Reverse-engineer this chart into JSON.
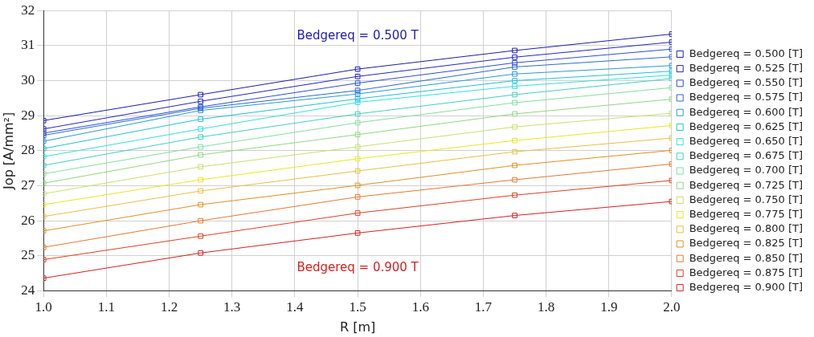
{
  "chart_data": {
    "type": "line",
    "xlabel": "R [m]",
    "ylabel": "Jop [A/mm²]",
    "x": [
      1.0,
      1.25,
      1.5,
      1.75,
      2.0
    ],
    "xlim": [
      1.0,
      2.0
    ],
    "xticks": [
      {
        "value": 1.0,
        "label": "1.0"
      },
      1.1,
      1.2,
      1.3,
      1.4,
      {
        "value": 1.5,
        "label": "1.5"
      },
      1.6,
      1.7,
      1.8,
      1.9,
      {
        "value": 2.0,
        "label": "2.0"
      }
    ],
    "ylim": [
      24,
      32
    ],
    "yticks": [
      24,
      25,
      26,
      27,
      28,
      29,
      30,
      31,
      32
    ],
    "grid": true,
    "legend": "right",
    "marker": "square",
    "line_style": "solid",
    "annotations": [
      "Bedgereq = 0.500 T",
      "Bedgereq = 0.900 T"
    ],
    "series": [
      {
        "name": "Bedgereq = 0.500 [T]",
        "color": "#1c1cb0",
        "values": [
          28.86,
          29.6,
          30.33,
          30.86,
          31.33
        ]
      },
      {
        "name": "Bedgereq = 0.525 [T]",
        "color": "#2424c8",
        "values": [
          28.62,
          29.41,
          30.12,
          30.67,
          31.1
        ]
      },
      {
        "name": "Bedgereq = 0.550 [T]",
        "color": "#2a4ed8",
        "values": [
          28.5,
          29.25,
          29.93,
          30.51,
          30.9
        ]
      },
      {
        "name": "Bedgereq = 0.575 [T]",
        "color": "#2a6ad0",
        "values": [
          28.44,
          29.21,
          29.72,
          30.39,
          30.68
        ]
      },
      {
        "name": "Bedgereq = 0.600 [T]",
        "color": "#2a98d8",
        "values": [
          28.27,
          29.15,
          29.62,
          30.19,
          30.43
        ]
      },
      {
        "name": "Bedgereq = 0.625 [T]",
        "color": "#20c0d8",
        "values": [
          28.06,
          28.9,
          29.48,
          30.0,
          30.27
        ]
      },
      {
        "name": "Bedgereq = 0.650 [T]",
        "color": "#30e0e0",
        "values": [
          27.83,
          28.62,
          29.38,
          29.84,
          30.16
        ]
      },
      {
        "name": "Bedgereq = 0.675 [T]",
        "color": "#40d0c0",
        "values": [
          27.58,
          28.39,
          29.05,
          29.6,
          30.06
        ]
      },
      {
        "name": "Bedgereq = 0.700 [T]",
        "color": "#80e0a0",
        "values": [
          27.34,
          28.11,
          28.8,
          29.37,
          29.8
        ]
      },
      {
        "name": "Bedgereq = 0.725 [T]",
        "color": "#90d880",
        "values": [
          27.07,
          27.88,
          28.46,
          29.05,
          29.47
        ]
      },
      {
        "name": "Bedgereq = 0.750 [T]",
        "color": "#c8e070",
        "values": [
          26.77,
          27.54,
          28.11,
          28.68,
          29.07
        ]
      },
      {
        "name": "Bedgereq = 0.775 [T]",
        "color": "#e8e820",
        "values": [
          26.46,
          27.17,
          27.77,
          28.29,
          28.72
        ]
      },
      {
        "name": "Bedgereq = 0.800 [T]",
        "color": "#e8c040",
        "values": [
          26.12,
          26.85,
          27.42,
          27.97,
          28.36
        ]
      },
      {
        "name": "Bedgereq = 0.825 [T]",
        "color": "#e09020",
        "values": [
          25.71,
          26.46,
          27.01,
          27.58,
          28.01
        ]
      },
      {
        "name": "Bedgereq = 0.850 [T]",
        "color": "#e87830",
        "values": [
          25.24,
          26.0,
          26.68,
          27.17,
          27.62
        ]
      },
      {
        "name": "Bedgereq = 0.875 [T]",
        "color": "#e04020",
        "values": [
          24.89,
          25.56,
          26.22,
          26.73,
          27.15
        ]
      },
      {
        "name": "Bedgereq = 0.900 [T]",
        "color": "#d82020",
        "values": [
          24.36,
          25.08,
          25.65,
          26.15,
          26.55
        ]
      }
    ]
  }
}
